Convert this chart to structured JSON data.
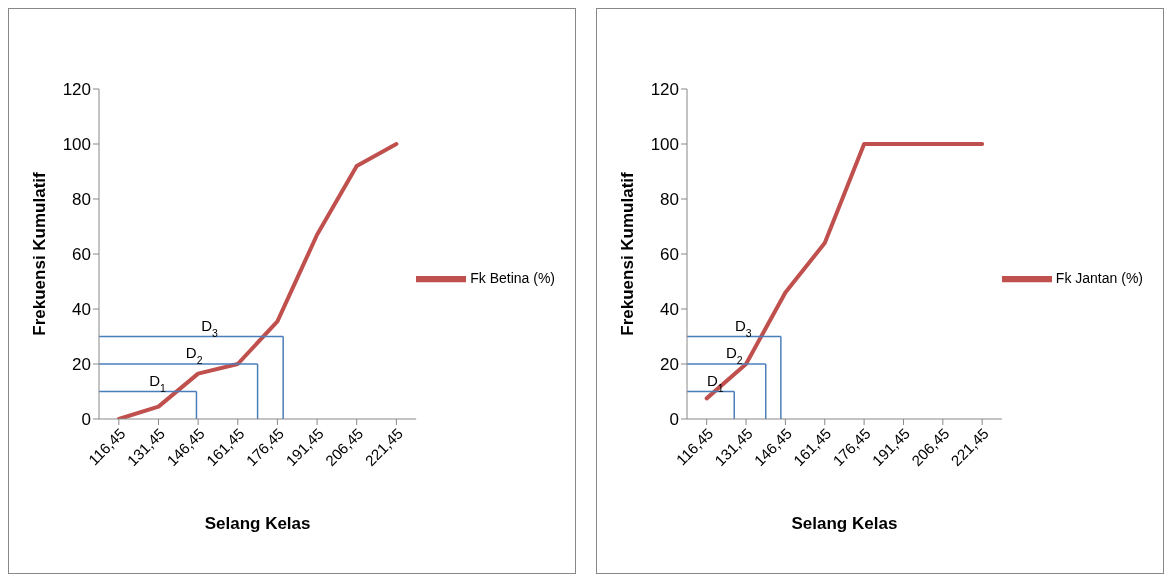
{
  "chart_data": [
    {
      "type": "line",
      "xlabel": "Selang Kelas",
      "ylabel": "Frekuensi Kumulatif",
      "categories": [
        "116,45",
        "131,45",
        "146,45",
        "161,45",
        "176,45",
        "191,45",
        "206,45",
        "221,45"
      ],
      "series": [
        {
          "name": "Fk Betina (%)",
          "color": "#c0504d",
          "values": [
            0,
            4.5,
            16.5,
            20,
            35.5,
            67,
            92,
            100
          ]
        }
      ],
      "ylim": [
        0,
        120
      ],
      "yticks": [
        0,
        20,
        40,
        60,
        80,
        100,
        120
      ],
      "grid": false,
      "legend": "right",
      "marker": "none",
      "line_style": "solid",
      "ref_lines": [
        {
          "axis": "y",
          "value": 10,
          "label": "D$_{1}$",
          "color": "#4a7ebb"
        },
        {
          "axis": "y",
          "value": 20,
          "label": "D$_{2}$",
          "color": "#4a7ebb"
        },
        {
          "axis": "y",
          "value": 30,
          "label": "D$_{3}$",
          "color": "#4a7ebb"
        }
      ]
    },
    {
      "type": "line",
      "xlabel": "Selang Kelas",
      "ylabel": "Frekuensi Kumulatif",
      "categories": [
        "116,45",
        "131,45",
        "146,45",
        "161,45",
        "176,45",
        "191,45",
        "206,45",
        "221,45"
      ],
      "series": [
        {
          "name": "Fk Jantan (%)",
          "color": "#c0504d",
          "values": [
            7.5,
            20,
            46,
            64,
            100,
            100,
            100,
            100
          ]
        }
      ],
      "ylim": [
        0,
        120
      ],
      "yticks": [
        0,
        20,
        40,
        60,
        80,
        100,
        120
      ],
      "grid": false,
      "legend": "right",
      "marker": "none",
      "line_style": "solid",
      "ref_lines": [
        {
          "axis": "y",
          "value": 10,
          "label": "D$_{1}$",
          "color": "#4a7ebb"
        },
        {
          "axis": "y",
          "value": 20,
          "label": "D$_{2}$",
          "color": "#4a7ebb"
        },
        {
          "axis": "y",
          "value": 30,
          "label": "D$_{3}$",
          "color": "#4a7ebb"
        }
      ]
    }
  ]
}
